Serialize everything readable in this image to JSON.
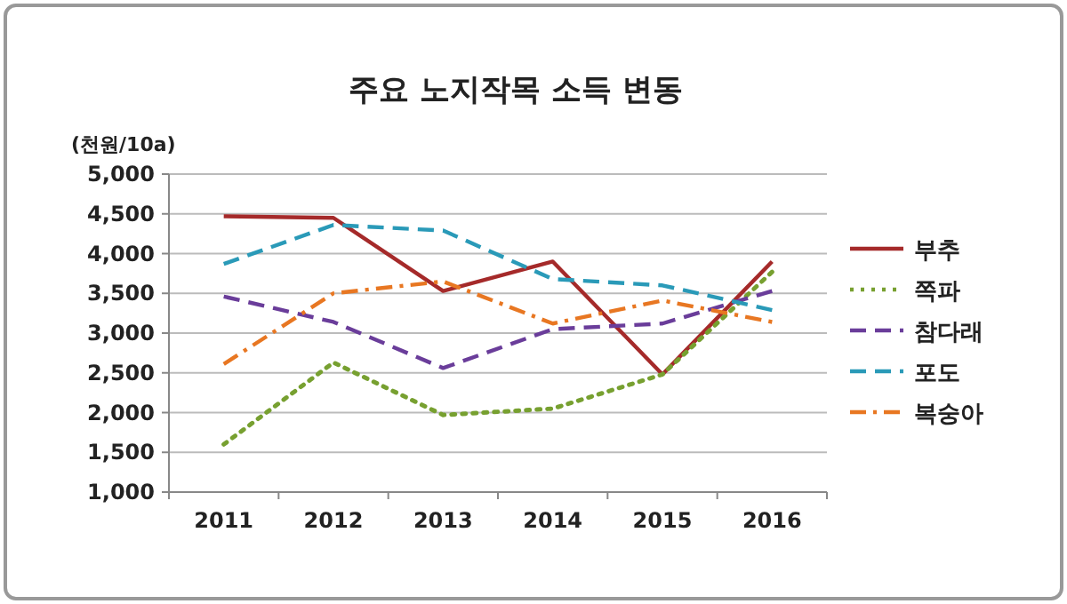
{
  "chart_data": {
    "type": "line",
    "title": "주요 노지작목 소득 변동",
    "ylabel": "(천원/10a)",
    "categories": [
      "2011",
      "2012",
      "2013",
      "2014",
      "2015",
      "2016"
    ],
    "ylim": [
      1000,
      5000
    ],
    "yticks": [
      {
        "value": 1000,
        "label": "1,000"
      },
      {
        "value": 1500,
        "label": "1,500"
      },
      {
        "value": 2000,
        "label": "2,000"
      },
      {
        "value": 2500,
        "label": "2,500"
      },
      {
        "value": 3000,
        "label": "3,000"
      },
      {
        "value": 3500,
        "label": "3,500"
      },
      {
        "value": 4000,
        "label": "4,000"
      },
      {
        "value": 4500,
        "label": "4,500"
      },
      {
        "value": 5000,
        "label": "5,000"
      }
    ],
    "grid": "y",
    "legend": "right",
    "marker": "none",
    "series": [
      {
        "name": "부추",
        "color": "#a52a2a",
        "line_style": "solid",
        "values": [
          4470,
          4450,
          3530,
          3900,
          2480,
          3900
        ]
      },
      {
        "name": "쪽파",
        "color": "#77a030",
        "line_style": "dotted",
        "values": [
          1600,
          2630,
          1970,
          2050,
          2480,
          3770
        ]
      },
      {
        "name": "참다래",
        "color": "#6a3d9a",
        "line_style": "dashed",
        "values": [
          3460,
          3140,
          2560,
          3050,
          3120,
          3530
        ]
      },
      {
        "name": "포도",
        "color": "#2a9ab8",
        "line_style": "dashed",
        "values": [
          3870,
          4360,
          4290,
          3680,
          3600,
          3290
        ]
      },
      {
        "name": "복숭아",
        "color": "#e87722",
        "line_style": "dashdot",
        "values": [
          2610,
          3500,
          3650,
          3120,
          3410,
          3140
        ]
      }
    ]
  }
}
